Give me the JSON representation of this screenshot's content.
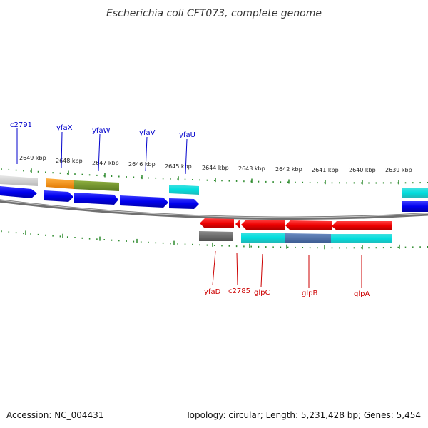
{
  "title": "Escherichia coli CFT073, complete genome",
  "footer": {
    "accession": "Accession: NC_004431",
    "summary": "Topology: circular; Length: 5,231,428 bp; Genes: 5,454"
  },
  "colors": {
    "axis": "#808080",
    "tick": "#2e8b2e",
    "forward_label": "#0000cc",
    "reverse_label": "#cc0000"
  },
  "kbp_labels": [
    "2649 kbp",
    "2648 kbp",
    "2647 kbp",
    "2646 kbp",
    "2645 kbp",
    "2644 kbp",
    "2643 kbp",
    "2642 kbp",
    "2641 kbp",
    "2640 kbp",
    "2639 kbp"
  ],
  "forward_genes": [
    "c2791",
    "yfaX",
    "yfaW",
    "yfaV",
    "yfaU"
  ],
  "reverse_genes": [
    "yfaD",
    "c2785",
    "glpC",
    "glpB",
    "glpA"
  ]
}
